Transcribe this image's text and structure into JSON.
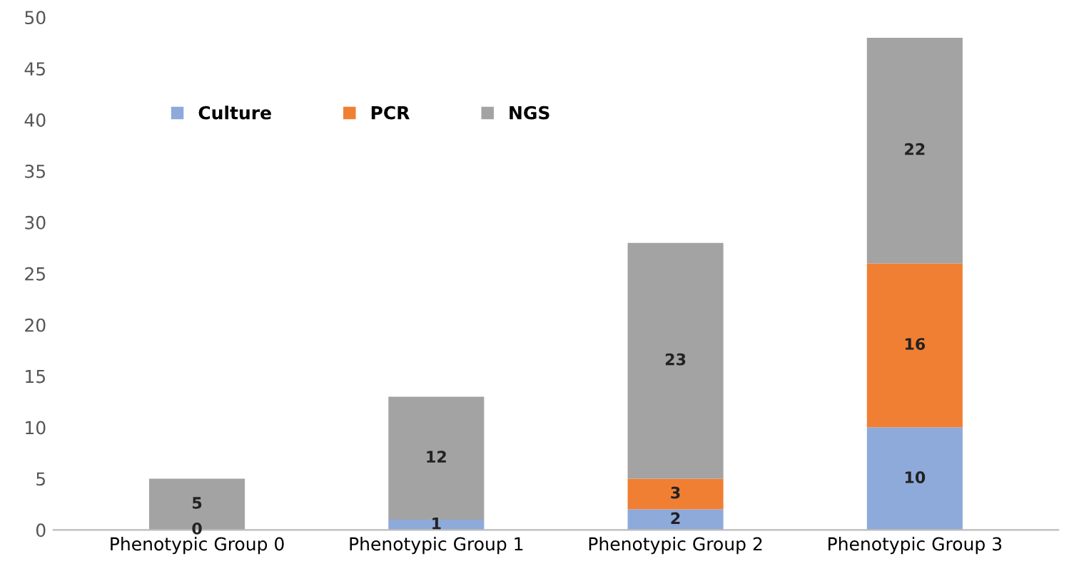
{
  "chart_data": {
    "type": "bar",
    "stacked": true,
    "categories": [
      "Phenotypic Group 0",
      "Phenotypic Group 1",
      "Phenotypic Group 2",
      "Phenotypic Group 3"
    ],
    "series": [
      {
        "name": "Culture",
        "color": "#8eaadb",
        "values": [
          0,
          1,
          2,
          10
        ],
        "value_labels": [
          "0",
          "1",
          "2",
          "10"
        ]
      },
      {
        "name": "PCR",
        "color": "#f07f34",
        "values": [
          0,
          0,
          3,
          16
        ],
        "value_labels": [
          null,
          null,
          "3",
          "16"
        ]
      },
      {
        "name": "NGS",
        "color": "#a3a3a3",
        "values": [
          5,
          12,
          23,
          22
        ],
        "value_labels": [
          "5",
          "12",
          "23",
          "22"
        ]
      }
    ],
    "ylim": [
      0,
      50
    ],
    "yticks": [
      0,
      5,
      10,
      15,
      20,
      25,
      30,
      35,
      40,
      45,
      50
    ],
    "grid": false,
    "legend": "top left"
  }
}
